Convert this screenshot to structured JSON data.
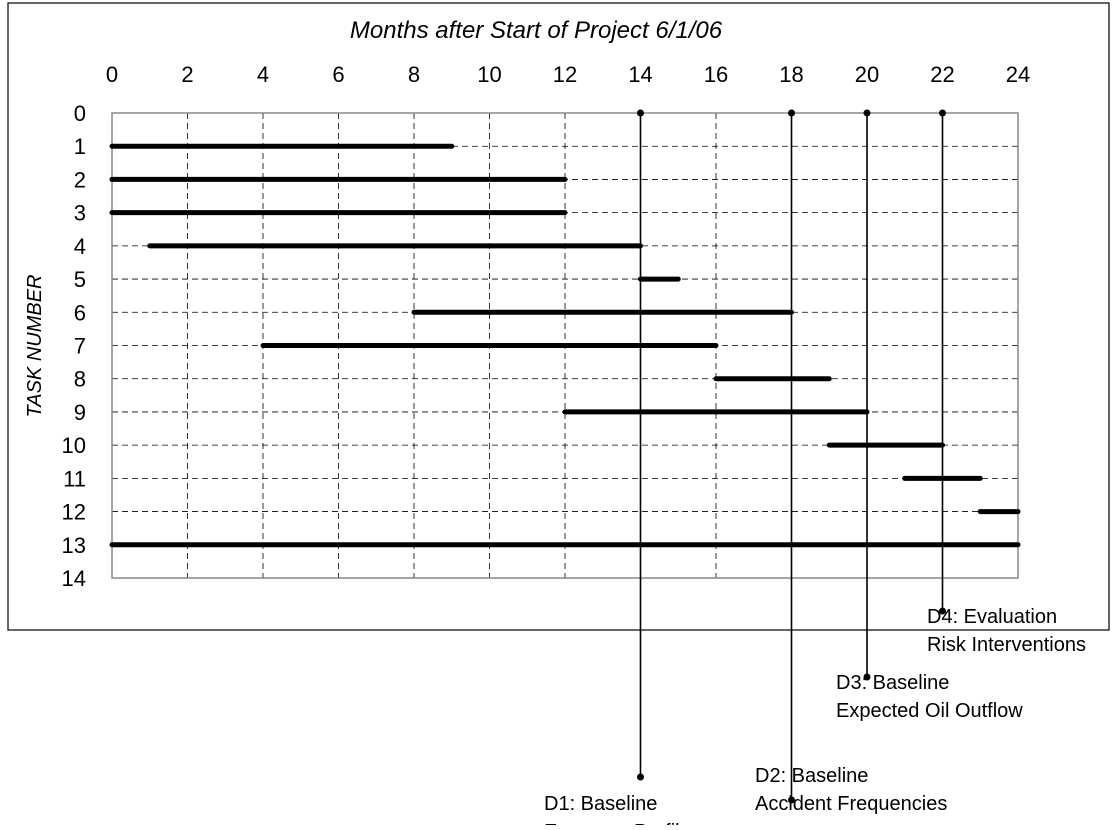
{
  "chart_data": {
    "type": "gantt",
    "title": "Months after Start of Project 6/1/06",
    "xlabel": "Months after Start of Project 6/1/06",
    "ylabel": "TASK NUMBER",
    "xlim": [
      0,
      24
    ],
    "ylim": [
      0,
      14
    ],
    "x_ticks": [
      0,
      2,
      4,
      6,
      8,
      10,
      12,
      14,
      16,
      18,
      20,
      22,
      24
    ],
    "y_ticks": [
      0,
      1,
      2,
      3,
      4,
      5,
      6,
      7,
      8,
      9,
      10,
      11,
      12,
      13,
      14
    ],
    "grid": true,
    "tasks": [
      {
        "task": 1,
        "start": 0,
        "end": 9
      },
      {
        "task": 2,
        "start": 0,
        "end": 12
      },
      {
        "task": 3,
        "start": 0,
        "end": 12
      },
      {
        "task": 4,
        "start": 1,
        "end": 14
      },
      {
        "task": 5,
        "start": 14,
        "end": 15
      },
      {
        "task": 6,
        "start": 8,
        "end": 18
      },
      {
        "task": 7,
        "start": 4,
        "end": 16
      },
      {
        "task": 8,
        "start": 16,
        "end": 19
      },
      {
        "task": 9,
        "start": 12,
        "end": 20
      },
      {
        "task": 10,
        "start": 19,
        "end": 22
      },
      {
        "task": 11,
        "start": 21,
        "end": 23
      },
      {
        "task": 12,
        "start": 23,
        "end": 24
      },
      {
        "task": 13,
        "start": 0,
        "end": 24
      }
    ],
    "deliverables": [
      {
        "id": "D1",
        "month": 14,
        "lines": [
          "D1: Baseline",
          "Exposure Profile"
        ]
      },
      {
        "id": "D2",
        "month": 18,
        "lines": [
          "D2: Baseline",
          "Accident Frequencies"
        ]
      },
      {
        "id": "D3",
        "month": 20,
        "lines": [
          "D3: Baseline",
          "Expected Oil Outflow"
        ]
      },
      {
        "id": "D4",
        "month": 22,
        "lines": [
          "D4: Evaluation",
          "Risk Interventions"
        ]
      }
    ]
  }
}
